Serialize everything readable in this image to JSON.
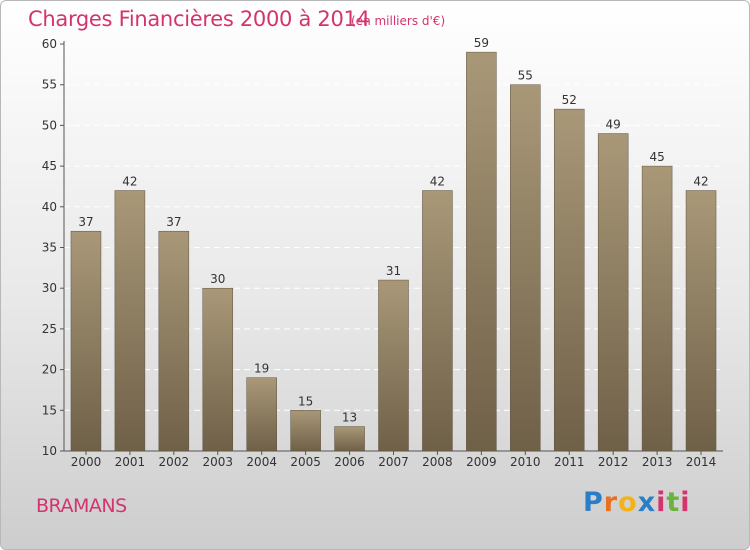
{
  "title": "Charges Financières 2000 à 2014",
  "subtitle": "(en milliers d'€)",
  "place": "BRAMANS",
  "brand": {
    "name": "Proxiti",
    "letter_colors": [
      "#2a7ec7",
      "#e8711f",
      "#f1b31c",
      "#2a7ec7",
      "#d4346e",
      "#6ab43e",
      "#d4346e"
    ]
  },
  "colors": {
    "title": "#d4346e",
    "bar_top": "#a99878",
    "bar_bottom": "#6f6048"
  },
  "chart_data": {
    "type": "bar",
    "categories": [
      "2000",
      "2001",
      "2002",
      "2003",
      "2004",
      "2005",
      "2006",
      "2007",
      "2008",
      "2009",
      "2010",
      "2011",
      "2012",
      "2013",
      "2014"
    ],
    "values": [
      37,
      42,
      37,
      30,
      19,
      15,
      13,
      31,
      42,
      59,
      55,
      52,
      49,
      45,
      42
    ],
    "ylim": [
      10,
      60
    ],
    "yticks": [
      10,
      15,
      20,
      25,
      30,
      35,
      40,
      45,
      50,
      55,
      60
    ],
    "grid": true,
    "title": "Charges Financières 2000 à 2014",
    "subtitle": "(en milliers d'€)"
  }
}
